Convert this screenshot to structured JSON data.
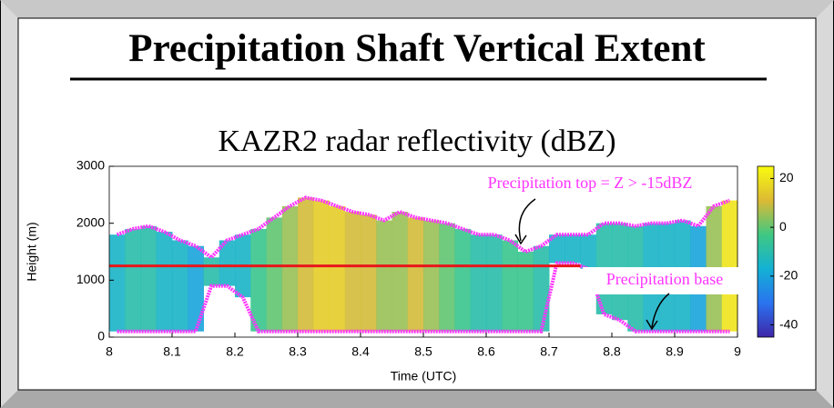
{
  "slide_title": "Precipitation Shaft Vertical Extent",
  "chart_data": {
    "type": "column-heatmap",
    "title": "KAZR2 radar reflectivity (dBZ)",
    "x_label": "Time (UTC)",
    "y_label": "Height (m)",
    "bins": [
      8,
      8.025,
      8.05,
      8.075,
      8.1,
      8.125,
      8.15,
      8.175,
      8.2,
      8.225,
      8.25,
      8.275,
      8.3,
      8.325,
      8.35,
      8.375,
      8.4,
      8.425,
      8.45,
      8.475,
      8.5,
      8.525,
      8.55,
      8.575,
      8.6,
      8.625,
      8.65,
      8.675,
      8.7,
      8.725,
      8.75,
      8.775,
      8.8,
      8.825,
      8.85,
      8.875,
      8.9,
      8.925,
      8.95,
      8.975,
      9
    ],
    "top": [
      1800,
      1900,
      1950,
      1850,
      1700,
      1600,
      1400,
      1700,
      1800,
      1900,
      2100,
      2300,
      2450,
      2400,
      2300,
      2200,
      2150,
      2050,
      2200,
      2100,
      2050,
      2000,
      1900,
      1800,
      1800,
      1700,
      1500,
      1600,
      1800,
      1800,
      1800,
      2000,
      2000,
      1950,
      2000,
      2000,
      2050,
      1950,
      2300,
      2400
    ],
    "base": [
      100,
      100,
      100,
      100,
      100,
      100,
      900,
      900,
      700,
      100,
      100,
      100,
      100,
      100,
      100,
      100,
      100,
      100,
      100,
      100,
      100,
      100,
      100,
      100,
      100,
      100,
      100,
      100,
      1300,
      1300,
      1200,
      400,
      300,
      100,
      100,
      100,
      100,
      100,
      100,
      100
    ],
    "reflectivity": [
      -15,
      -10,
      -10,
      -15,
      -15,
      -20,
      -10,
      -15,
      -15,
      -5,
      0,
      5,
      10,
      15,
      15,
      10,
      10,
      5,
      5,
      10,
      5,
      0,
      -5,
      -10,
      -10,
      -5,
      -5,
      -10,
      -15,
      -15,
      -15,
      -10,
      -10,
      -10,
      -15,
      -15,
      -15,
      -20,
      5,
      20
    ],
    "outline_color": "#ff33ff",
    "reference_line": 1250,
    "reference_color": "#e8161b",
    "xlim": [
      8,
      9
    ],
    "xticks": [
      8,
      8.1,
      8.2,
      8.3,
      8.4,
      8.5,
      8.6,
      8.7,
      8.8,
      8.9,
      9
    ],
    "ylim": [
      0,
      3000
    ],
    "yticks": [
      0,
      1000,
      2000,
      3000
    ],
    "clim": [
      -45,
      25
    ],
    "cticks": [
      -40,
      -20,
      0,
      20
    ],
    "annotations": [
      "Precipitation top = Z > -15dBZ",
      "Precipitation base"
    ]
  }
}
